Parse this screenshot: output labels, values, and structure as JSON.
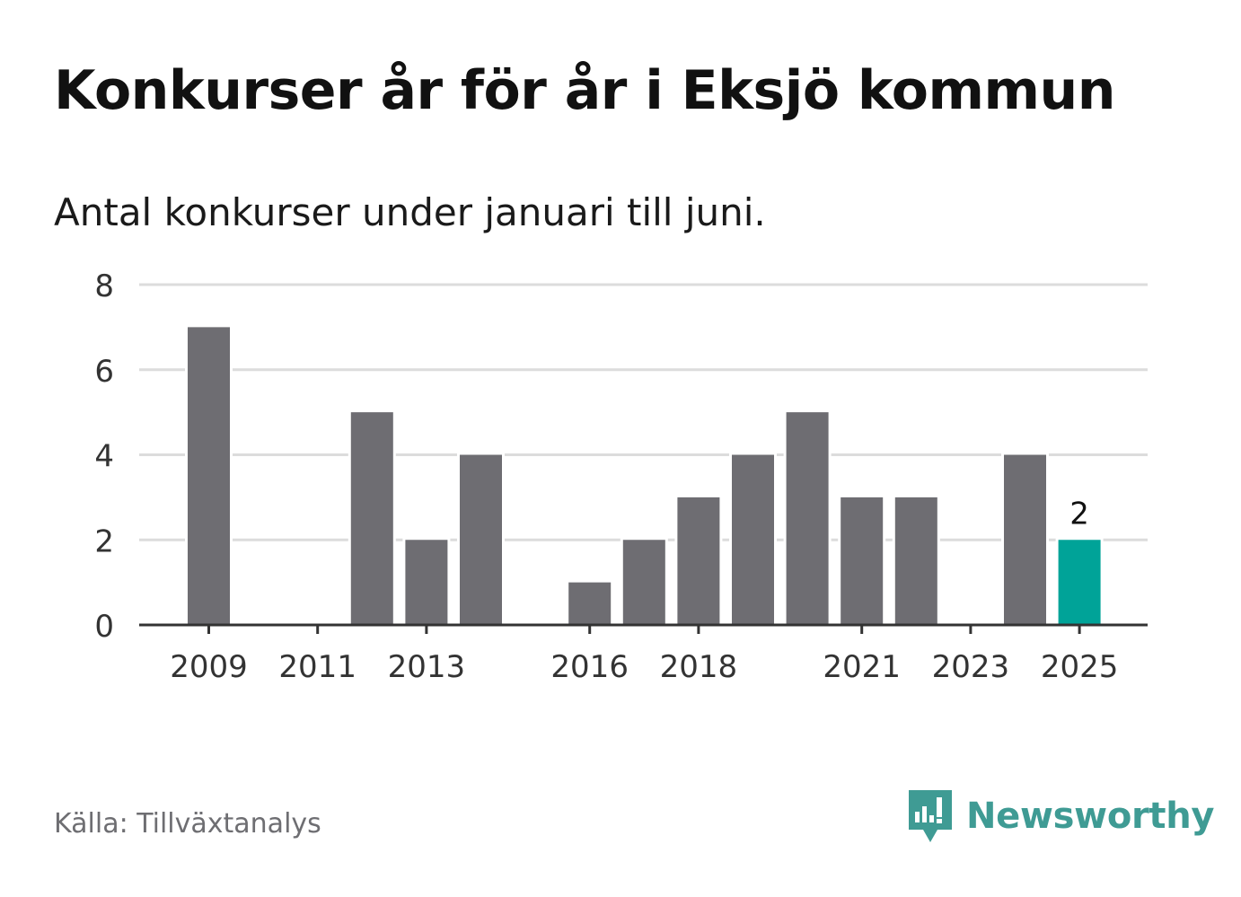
{
  "header": {
    "title": "Konkurser år för år i Eksjö kommun",
    "subtitle": "Antal konkurser under januari till juni."
  },
  "footer": {
    "source": "Källa: Tillväxtanalys",
    "brand": "Newsworthy",
    "brand_icon": "newsworthy-logo-icon"
  },
  "colors": {
    "bar": "#6e6d72",
    "highlight": "#00a398",
    "grid": "#dcdcdc",
    "axis": "#333333",
    "brand": "#3f9b94"
  },
  "chart_data": {
    "type": "bar",
    "categories": [
      "2009",
      "2010",
      "2011",
      "2012",
      "2013",
      "2014",
      "2015",
      "2016",
      "2017",
      "2018",
      "2019",
      "2020",
      "2021",
      "2022",
      "2023",
      "2024",
      "2025"
    ],
    "values": [
      7,
      0,
      0,
      5,
      2,
      4,
      0,
      1,
      2,
      3,
      4,
      5,
      3,
      3,
      0,
      4,
      2
    ],
    "highlight_category": "2025",
    "data_labels": [
      {
        "category": "2025",
        "text": "2"
      }
    ],
    "x_tick_labels": [
      "2009",
      "2011",
      "2013",
      "2016",
      "2018",
      "2021",
      "2023",
      "2025"
    ],
    "y_ticks": [
      0,
      2,
      4,
      6,
      8
    ],
    "ylim": [
      0,
      8
    ],
    "xlabel": "",
    "ylabel": "",
    "grid": true,
    "legend": "none"
  }
}
